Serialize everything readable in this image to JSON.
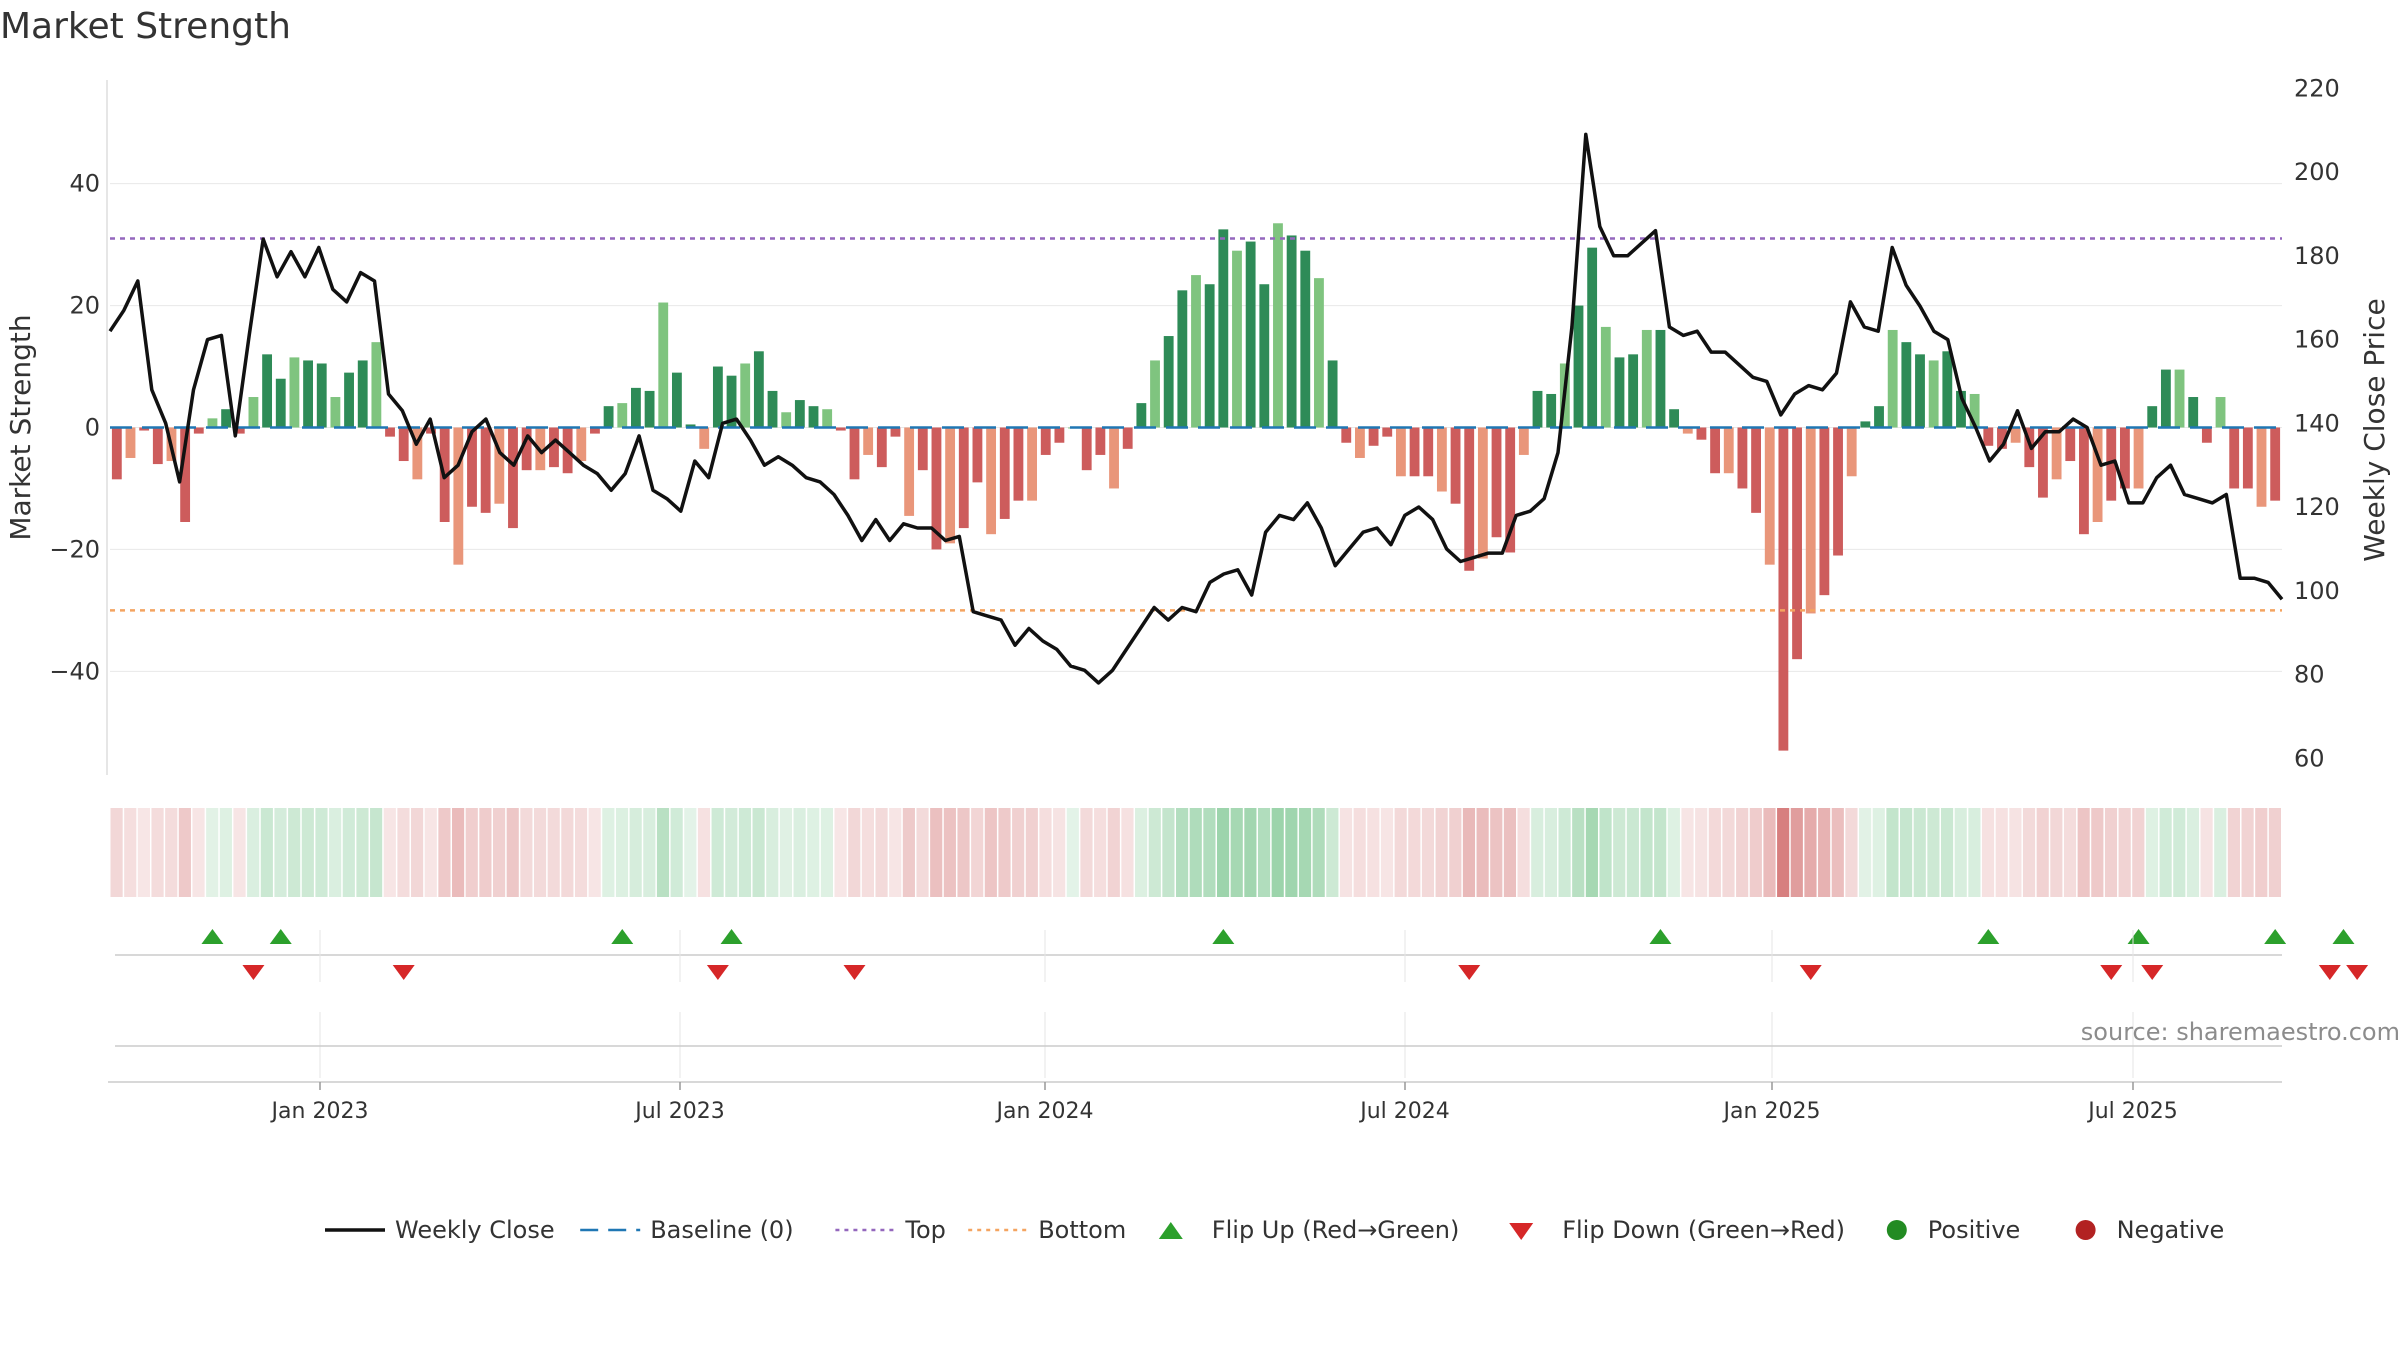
{
  "page": {
    "title": "Market Strength",
    "source": "source: sharemaestro.com"
  },
  "chart_data": {
    "type": "bar",
    "title": "Market Strength",
    "ylabel": "Market Strength",
    "y2label": "Weekly Close Price",
    "ylim": [
      -57,
      57
    ],
    "y2lim": [
      56,
      222
    ],
    "yticks": [
      -40,
      -20,
      0,
      20,
      40
    ],
    "y2ticks": [
      60,
      80,
      100,
      120,
      140,
      160,
      180,
      200,
      220
    ],
    "xticks": [
      {
        "label": "Jan 2023",
        "i": 14
      },
      {
        "label": "Jul 2023",
        "i": 40
      },
      {
        "label": "Jan 2024",
        "i": 66
      },
      {
        "label": "Jul 2024",
        "i": 92
      },
      {
        "label": "Jan 2025",
        "i": 118
      },
      {
        "label": "Jul 2025",
        "i": 144
      }
    ],
    "top_line": 31,
    "bottom_line": -30,
    "baseline": 0,
    "strength": [
      -8.5,
      -5,
      -0.5,
      -6,
      -5.5,
      -15.5,
      -1,
      1.5,
      3,
      -1,
      5,
      12,
      8,
      11.5,
      11,
      10.5,
      5,
      9,
      11,
      14,
      -1.5,
      -5.5,
      -8.5,
      -1,
      -15.5,
      -22.5,
      -13,
      -14,
      -12.5,
      -16.5,
      -7,
      -7,
      -6.5,
      -7.5,
      -5.5,
      -1,
      3.5,
      4,
      6.5,
      6,
      20.5,
      9,
      0.5,
      -3.5,
      10,
      8.5,
      10.5,
      12.5,
      6,
      2.5,
      4.5,
      3.5,
      3,
      -0.5,
      -8.5,
      -4.5,
      -6.5,
      -1.5,
      -14.5,
      -7,
      -20,
      -19,
      -16.5,
      -9,
      -17.5,
      -15,
      -12,
      -12,
      -4.5,
      -2.5,
      0,
      -7,
      -4.5,
      -10,
      -3.5,
      4,
      11,
      15,
      22.5,
      25,
      23.5,
      32.5,
      29,
      30.5,
      23.5,
      33.5,
      31.5,
      29,
      24.5,
      11,
      -2.5,
      -5,
      -3,
      -1.5,
      -8,
      -8,
      -8,
      -10.5,
      -12.5,
      -23.5,
      -21.5,
      -18,
      -20.5,
      -4.5,
      6,
      5.5,
      10.5,
      20,
      29.5,
      16.5,
      11.5,
      12,
      16,
      16,
      3,
      -1,
      -2,
      -7.5,
      -7.5,
      -10,
      -14,
      -22.5,
      -53,
      -38,
      -30.5,
      -27.5,
      -21,
      -8,
      1,
      3.5,
      16,
      14,
      12,
      11,
      12.5,
      6,
      5.5,
      -3,
      -3.5,
      -2.5,
      -6.5,
      -11.5,
      -8.5,
      -5.5,
      -17.5,
      -15.5,
      -12,
      -10,
      -10,
      3.5,
      9.5,
      9.5,
      5,
      -2.5,
      5,
      -10,
      -10,
      -13,
      -12
    ],
    "close": [
      162,
      167,
      174,
      148,
      140,
      126,
      148,
      160,
      161,
      137,
      161,
      184,
      175,
      181,
      175,
      182,
      172,
      169,
      176,
      174,
      147,
      143,
      135,
      141,
      127,
      130,
      138,
      141,
      133,
      130,
      137,
      133,
      136,
      133,
      130,
      128,
      124,
      128,
      137,
      124,
      122,
      119,
      131,
      127,
      140,
      141,
      136,
      130,
      132,
      130,
      127,
      126,
      123,
      118,
      112,
      117,
      112,
      116,
      115,
      115,
      112,
      113,
      95,
      94,
      93,
      87,
      91,
      88,
      86,
      82,
      81,
      78,
      81,
      86,
      91,
      96,
      93,
      96,
      95,
      102,
      104,
      105,
      99,
      114,
      118,
      117,
      121,
      115,
      106,
      110,
      114,
      115,
      111,
      118,
      120,
      117,
      110,
      107,
      108,
      109,
      109,
      118,
      119,
      122,
      133,
      163,
      209,
      187,
      180,
      180,
      183,
      186,
      163,
      161,
      162,
      157,
      157,
      154,
      151,
      150,
      142,
      147,
      149,
      148,
      152,
      169,
      163,
      162,
      182,
      173,
      168,
      162,
      160,
      146,
      139,
      131,
      135,
      143,
      134,
      138,
      138,
      141,
      139,
      130,
      131,
      121,
      121,
      127,
      130,
      123,
      122,
      121,
      123,
      103,
      103,
      102,
      98
    ],
    "flips_up": [
      3,
      5,
      17,
      21,
      37,
      57,
      69,
      83,
      88,
      93
    ],
    "flips_down": [
      4,
      10,
      21,
      26,
      44,
      63,
      75,
      84,
      86,
      95,
      96
    ],
    "legend": [
      {
        "label": "Weekly Close",
        "kind": "line",
        "color": "#111111"
      },
      {
        "label": "Baseline (0)",
        "kind": "dash",
        "color": "#1f77b4"
      },
      {
        "label": "Top",
        "kind": "dot",
        "color": "#9467bd"
      },
      {
        "label": "Bottom",
        "kind": "dot",
        "color": "#f4a460"
      },
      {
        "label": "Flip Up (Red→Green)",
        "kind": "tri-up",
        "color": "#2ca02c"
      },
      {
        "label": "Flip Down (Green→Red)",
        "kind": "tri-down",
        "color": "#d62728"
      },
      {
        "label": "Positive",
        "kind": "circle",
        "color": "#228b22"
      },
      {
        "label": "Negative",
        "kind": "circle",
        "color": "#b22222"
      }
    ],
    "colors": {
      "pos_strong": "#2e8b57",
      "pos_light": "#7fc47f",
      "neg_strong": "#cd5c5c",
      "neg_light": "#e9967a",
      "line": "#111111",
      "top": "#9467bd",
      "bottom": "#f4a460",
      "baseline": "#1f77b4",
      "up_marker": "#2ca02c",
      "down_marker": "#d62728"
    }
  }
}
